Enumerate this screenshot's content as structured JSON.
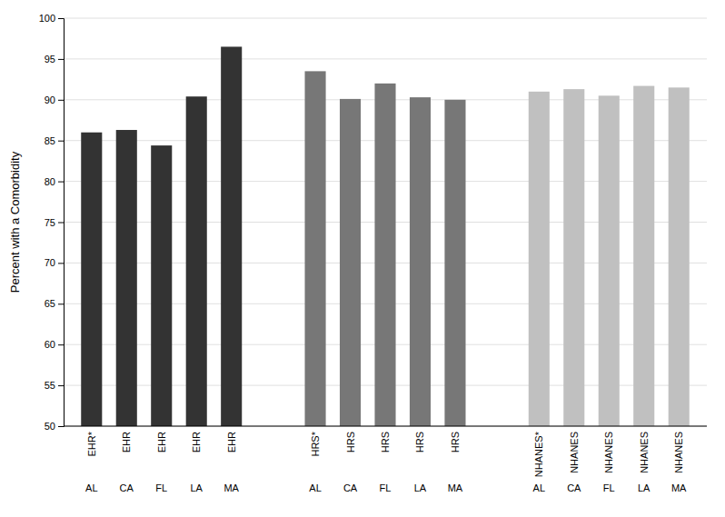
{
  "chart_data": {
    "type": "bar",
    "y_label": "Percent with a Comorbidity",
    "categories": [
      [
        "EHR*",
        "AL"
      ],
      [
        "EHR",
        "CA"
      ],
      [
        "EHR",
        "FL"
      ],
      [
        "EHR",
        "LA"
      ],
      [
        "EHR",
        "MA"
      ],
      [
        "HRS*",
        "AL"
      ],
      [
        "HRS",
        "CA"
      ],
      [
        "HRS",
        "FL"
      ],
      [
        "HRS",
        "LA"
      ],
      [
        "HRS",
        "MA"
      ],
      [
        "NHANES*",
        "AL"
      ],
      [
        "NHANES",
        "CA"
      ],
      [
        "NHANES",
        "FL"
      ],
      [
        "NHANES",
        "LA"
      ],
      [
        "NHANES",
        "MA"
      ]
    ],
    "values": [
      86.0,
      86.3,
      84.4,
      90.4,
      96.5,
      93.5,
      90.1,
      92.0,
      90.3,
      90.0,
      91.0,
      91.3,
      90.5,
      91.7,
      91.5
    ],
    "colors": [
      "#333333",
      "#333333",
      "#333333",
      "#333333",
      "#333333",
      "#777777",
      "#777777",
      "#777777",
      "#777777",
      "#777777",
      "#c0c0c0",
      "#c0c0c0",
      "#c0c0c0",
      "#c0c0c0",
      "#c0c0c0"
    ],
    "ylim": [
      50,
      100
    ],
    "yticks": [
      50,
      55,
      60,
      65,
      70,
      75,
      80,
      85,
      90,
      95,
      100
    ],
    "grid": true
  }
}
